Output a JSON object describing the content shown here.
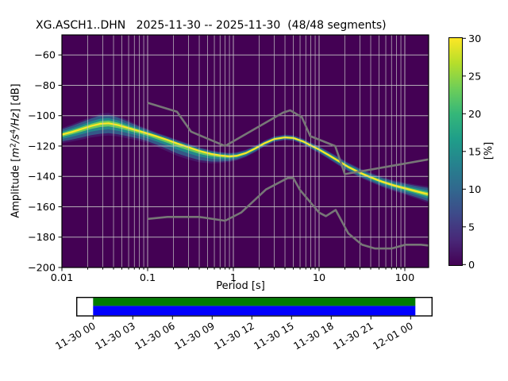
{
  "title": "XG.ASCH1..DHN   2025-11-30 -- 2025-11-30  (48/48 segments)",
  "axes": {
    "xlabel": "Period [s]",
    "ylabel_parts": [
      "Amplitude [",
      "m",
      "2",
      "/s",
      "4",
      "/Hz",
      "] [dB]"
    ],
    "x_tick_values": [
      0.01,
      0.1,
      1,
      10,
      100
    ],
    "x_tick_labels": [
      "0.01",
      "0.1",
      "1",
      "10",
      "100"
    ],
    "y_tick_values": [
      -60,
      -80,
      -100,
      -120,
      -140,
      -160,
      -180,
      -200
    ],
    "y_tick_labels": [
      "−60",
      "−80",
      "−100",
      "−120",
      "−140",
      "−160",
      "−180",
      "−200"
    ]
  },
  "colorbar": {
    "label": "[%]",
    "tick_values": [
      0,
      5,
      10,
      15,
      20,
      25,
      30
    ],
    "tick_labels": [
      "0",
      "5",
      "10",
      "15",
      "20",
      "25",
      "30"
    ],
    "min": 0,
    "max": 30,
    "colormap": "viridis",
    "colors": [
      "#440154",
      "#482878",
      "#3e4989",
      "#31688e",
      "#26828e",
      "#1f9e89",
      "#35b779",
      "#6ece58",
      "#b5de2b",
      "#fde725"
    ]
  },
  "chart_data": {
    "type": "heatmap",
    "title": "XG.ASCH1..DHN   2025-11-30 -- 2025-11-30  (48/48 segments)",
    "xlabel": "Period [s]",
    "ylabel": "Amplitude [m^2/s^4/Hz] [dB]",
    "x_axis": {
      "scale": "log",
      "min": 0.01,
      "max": 189.5,
      "ticks": [
        0.01,
        0.1,
        1,
        10,
        100
      ]
    },
    "y_axis": {
      "scale": "linear",
      "min": -200,
      "max": -46.8,
      "ticks": [
        -60,
        -80,
        -100,
        -120,
        -140,
        -160,
        -180,
        -200
      ]
    },
    "grid": true,
    "background_color": "#440154",
    "grid_color": "#c8c8c8",
    "ppsd_mode": {
      "ridge_color": "#fde725",
      "band_layers": [
        {
          "f": 1.25,
          "color": "#453781",
          "opacity": 0.45
        },
        {
          "f": 1.0,
          "color": "#31688e",
          "opacity": 0.8
        },
        {
          "f": 0.62,
          "color": "#21918c",
          "opacity": 0.85
        },
        {
          "f": 0.32,
          "color": "#74d055",
          "opacity": 0.9
        }
      ],
      "periods_s": [
        0.01,
        0.013,
        0.017,
        0.022,
        0.028,
        0.035,
        0.045,
        0.06,
        0.08,
        0.1,
        0.13,
        0.17,
        0.22,
        0.3,
        0.4,
        0.55,
        0.7,
        0.9,
        1.1,
        1.4,
        1.8,
        2.3,
        3.0,
        4.0,
        5.0,
        6.5,
        8.0,
        10.0,
        13.0,
        17.0,
        22.0,
        30.0,
        40.0,
        55.0,
        75.0,
        100.0,
        130.0,
        160.0,
        189.0
      ],
      "db": [
        -112.5,
        -110.8,
        -108.8,
        -106.8,
        -105.4,
        -105.0,
        -106.2,
        -108.2,
        -110.2,
        -111.8,
        -113.8,
        -116.0,
        -118.3,
        -120.8,
        -123.2,
        -125.2,
        -126.2,
        -126.8,
        -126.4,
        -124.6,
        -121.6,
        -118.2,
        -115.4,
        -114.3,
        -114.7,
        -117.0,
        -119.6,
        -122.3,
        -126.0,
        -130.0,
        -133.8,
        -137.6,
        -140.6,
        -143.6,
        -146.0,
        -147.8,
        -149.5,
        -150.8,
        -151.8
      ],
      "half_width_up_db": [
        3.5,
        4.0,
        4.5,
        5.0,
        5.5,
        5.5,
        5.0,
        4.0,
        3.0,
        2.5,
        2.0,
        2.0,
        2.0,
        2.0,
        2.0,
        2.0,
        2.0,
        2.0,
        2.0,
        1.8,
        1.6,
        1.5,
        1.5,
        1.5,
        1.5,
        1.5,
        1.6,
        1.8,
        2.0,
        2.2,
        2.3,
        2.4,
        2.5,
        2.6,
        2.8,
        3.0,
        3.4,
        3.8,
        4.2
      ],
      "half_width_dn_db": [
        4.5,
        5.0,
        5.5,
        6.0,
        6.5,
        6.5,
        6.0,
        5.5,
        5.0,
        5.0,
        5.5,
        6.0,
        6.5,
        6.5,
        6.0,
        5.0,
        4.0,
        3.0,
        2.5,
        2.2,
        2.0,
        1.8,
        1.6,
        1.5,
        1.5,
        1.6,
        1.8,
        2.0,
        2.2,
        2.4,
        2.5,
        2.6,
        2.7,
        2.9,
        3.1,
        3.4,
        3.8,
        4.2,
        4.6
      ]
    },
    "noise_models": {
      "color": "#777777",
      "nhnm": [
        [
          0.1,
          -91.5
        ],
        [
          0.22,
          -97.4
        ],
        [
          0.32,
          -110.5
        ],
        [
          0.8,
          -120.0
        ],
        [
          3.8,
          -98.0
        ],
        [
          4.6,
          -96.5
        ],
        [
          6.3,
          -101.0
        ],
        [
          7.9,
          -113.5
        ],
        [
          15.4,
          -120.0
        ],
        [
          20.0,
          -138.5
        ],
        [
          189.0,
          -128.8
        ]
      ],
      "nlnm": [
        [
          0.1,
          -168.0
        ],
        [
          0.17,
          -166.7
        ],
        [
          0.4,
          -166.7
        ],
        [
          0.8,
          -169.2
        ],
        [
          1.24,
          -163.7
        ],
        [
          2.4,
          -148.6
        ],
        [
          4.3,
          -141.1
        ],
        [
          5.0,
          -141.1
        ],
        [
          6.0,
          -149.0
        ],
        [
          10.0,
          -163.8
        ],
        [
          12.0,
          -166.2
        ],
        [
          15.6,
          -162.1
        ],
        [
          21.9,
          -177.5
        ],
        [
          31.6,
          -185.0
        ],
        [
          45.0,
          -187.5
        ],
        [
          70.0,
          -187.5
        ],
        [
          101.0,
          -185.0
        ],
        [
          154.0,
          -185.0
        ],
        [
          189.0,
          -185.5
        ]
      ]
    }
  },
  "timeline": {
    "tick_labels": [
      "11-30 00",
      "11-30 03",
      "11-30 06",
      "11-30 09",
      "11-30 12",
      "11-30 15",
      "11-30 18",
      "11-30 21",
      "12-01 00"
    ],
    "psd_coverage_color": "#007b00",
    "data_availability_color": "#0000ff"
  }
}
